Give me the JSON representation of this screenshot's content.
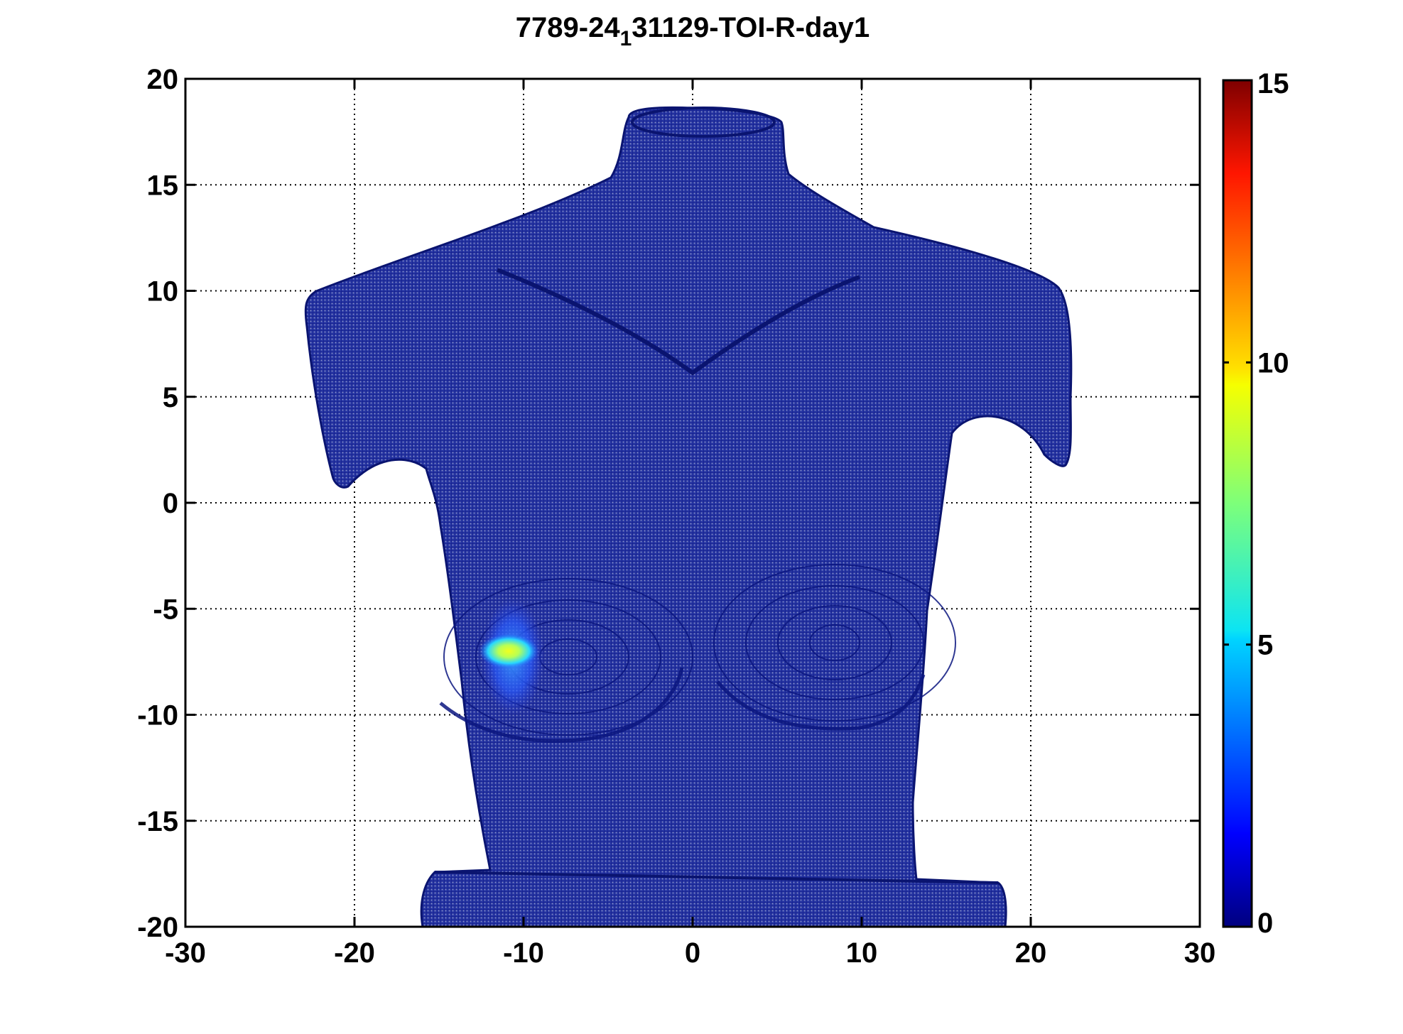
{
  "chart_data": {
    "type": "heatmap",
    "title": {
      "prefix": "7789-24",
      "subscript": "1",
      "suffix": "31129-TOI-R-day1"
    },
    "xlabel": "",
    "ylabel": "",
    "xlim": [
      -30,
      30
    ],
    "ylim": [
      -20,
      20
    ],
    "xticks": [
      -30,
      -20,
      -10,
      0,
      10,
      20,
      30
    ],
    "yticks": [
      20,
      15,
      10,
      5,
      0,
      -5,
      -10,
      -15,
      -20
    ],
    "grid": true,
    "colorbar": {
      "range": [
        0,
        15
      ],
      "ticks": [
        0,
        5,
        10,
        15
      ],
      "colormap": "jet",
      "placement": "right"
    },
    "hotspot": {
      "x_range": [
        -12.5,
        -8.8
      ],
      "y_range": [
        -10,
        -4.5
      ],
      "peak_x": -11.3,
      "peak_y": -7,
      "peak_value": 9
    },
    "surface_base_color": "#1c2a9c"
  }
}
